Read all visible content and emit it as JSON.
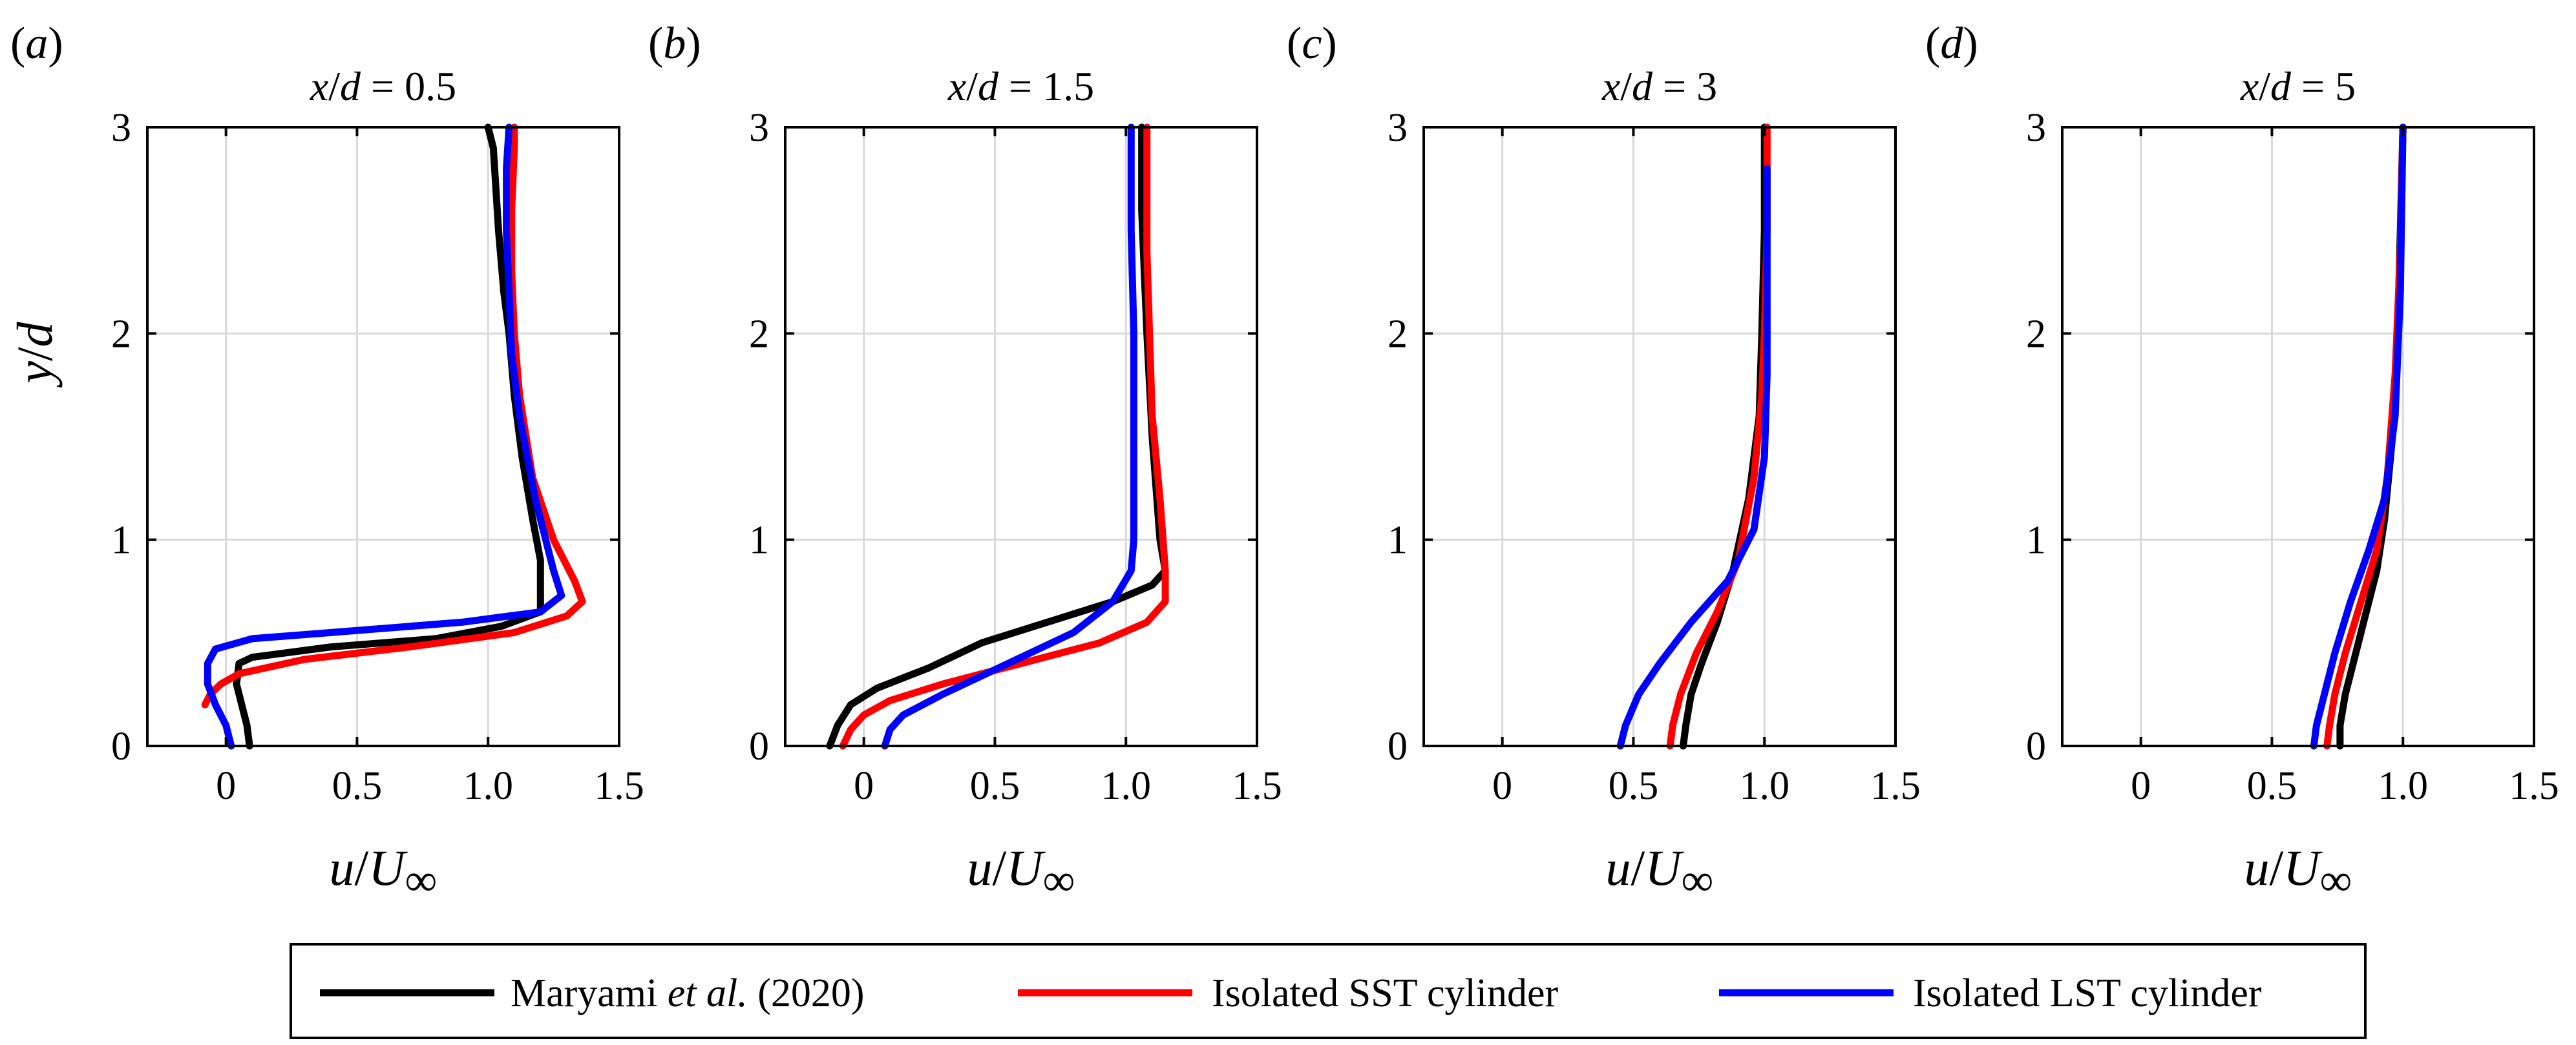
{
  "colors": {
    "maryami": "#000000",
    "sst": "#ff0000",
    "lst": "#0000ff",
    "grid": "#d9d9d9",
    "frame": "#000000"
  },
  "legend": [
    {
      "key": "maryami",
      "label_pre": "Maryami ",
      "label_ital": "et al.",
      "label_post": " (2020)"
    },
    {
      "key": "sst",
      "label_pre": "Isolated SST cylinder",
      "label_ital": "",
      "label_post": ""
    },
    {
      "key": "lst",
      "label_pre": "Isolated LST cylinder",
      "label_ital": "",
      "label_post": ""
    }
  ],
  "chart_data": [
    {
      "type": "line",
      "panel_label": "(a)",
      "title": "x/d = 0.5",
      "xlabel": "u/U∞",
      "ylabel": "y/d",
      "xlim": [
        -0.3,
        1.5
      ],
      "ylim": [
        0,
        3
      ],
      "xticks": [
        0,
        0.5,
        1.0,
        1.5
      ],
      "xtick_labels": [
        "0",
        "0.5",
        "1.0",
        "1.5"
      ],
      "yticks": [
        0,
        1,
        2,
        3
      ],
      "ytick_labels": [
        "0",
        "1",
        "2",
        "3"
      ],
      "grid": true,
      "series": [
        {
          "name": "Maryami et al. (2020)",
          "key": "maryami",
          "x": [
            0.09,
            0.08,
            0.06,
            0.04,
            0.05,
            0.1,
            0.4,
            0.8,
            1.05,
            1.2,
            1.2,
            1.17,
            1.13,
            1.1,
            1.08,
            1.06,
            1.04,
            1.03,
            1.02,
            1.0
          ],
          "y": [
            0.0,
            0.1,
            0.2,
            0.3,
            0.4,
            0.43,
            0.48,
            0.52,
            0.58,
            0.65,
            0.9,
            1.1,
            1.4,
            1.7,
            2.0,
            2.2,
            2.5,
            2.7,
            2.9,
            3.0
          ]
        },
        {
          "name": "Isolated SST cylinder",
          "key": "sst",
          "x": [
            -0.08,
            -0.06,
            -0.02,
            0.05,
            0.3,
            0.7,
            1.1,
            1.3,
            1.36,
            1.33,
            1.25,
            1.17,
            1.12,
            1.1,
            1.09,
            1.09,
            1.1,
            1.1
          ],
          "y": [
            0.2,
            0.25,
            0.3,
            0.35,
            0.42,
            0.48,
            0.55,
            0.63,
            0.7,
            0.8,
            1.0,
            1.3,
            1.7,
            2.0,
            2.3,
            2.6,
            2.9,
            3.0
          ]
        },
        {
          "name": "Isolated LST cylinder",
          "key": "lst",
          "x": [
            0.02,
            0.0,
            -0.04,
            -0.07,
            -0.07,
            -0.04,
            0.1,
            0.5,
            0.9,
            1.2,
            1.28,
            1.25,
            1.18,
            1.12,
            1.09,
            1.08,
            1.07,
            1.07,
            1.08
          ],
          "y": [
            0.0,
            0.1,
            0.2,
            0.3,
            0.4,
            0.47,
            0.52,
            0.56,
            0.6,
            0.65,
            0.73,
            0.85,
            1.2,
            1.6,
            1.9,
            2.2,
            2.5,
            2.8,
            3.0
          ]
        }
      ]
    },
    {
      "type": "line",
      "panel_label": "(b)",
      "title": "x/d = 1.5",
      "xlabel": "u/U∞",
      "ylabel": "",
      "xlim": [
        -0.3,
        1.5
      ],
      "ylim": [
        0,
        3
      ],
      "xticks": [
        0,
        0.5,
        1.0,
        1.5
      ],
      "xtick_labels": [
        "0",
        "0.5",
        "1.0",
        "1.5"
      ],
      "yticks": [
        0,
        1,
        2,
        3
      ],
      "ytick_labels": [
        "0",
        "1",
        "2",
        "3"
      ],
      "grid": true,
      "series": [
        {
          "name": "Maryami et al. (2020)",
          "key": "maryami",
          "x": [
            -0.13,
            -0.1,
            -0.05,
            0.05,
            0.25,
            0.45,
            0.7,
            0.95,
            1.1,
            1.15,
            1.13,
            1.1,
            1.08,
            1.07,
            1.06,
            1.06,
            1.06
          ],
          "y": [
            0.0,
            0.1,
            0.2,
            0.28,
            0.38,
            0.5,
            0.6,
            0.7,
            0.78,
            0.85,
            1.0,
            1.5,
            2.0,
            2.3,
            2.6,
            2.8,
            3.0
          ]
        },
        {
          "name": "Isolated SST cylinder",
          "key": "sst",
          "x": [
            -0.08,
            -0.05,
            0.0,
            0.1,
            0.3,
            0.6,
            0.9,
            1.08,
            1.15,
            1.15,
            1.13,
            1.1,
            1.09,
            1.08,
            1.08,
            1.08
          ],
          "y": [
            0.0,
            0.08,
            0.15,
            0.22,
            0.3,
            0.4,
            0.5,
            0.6,
            0.7,
            0.85,
            1.2,
            1.6,
            2.0,
            2.4,
            2.8,
            3.0
          ]
        },
        {
          "name": "Isolated LST cylinder",
          "key": "lst",
          "x": [
            0.08,
            0.1,
            0.15,
            0.3,
            0.55,
            0.8,
            0.95,
            1.02,
            1.03,
            1.03,
            1.03,
            1.02,
            1.02
          ],
          "y": [
            0.0,
            0.08,
            0.15,
            0.25,
            0.4,
            0.55,
            0.7,
            0.85,
            1.0,
            1.5,
            2.0,
            2.5,
            3.0
          ]
        }
      ]
    },
    {
      "type": "line",
      "panel_label": "(c)",
      "title": "x/d = 3",
      "xlabel": "u/U∞",
      "ylabel": "",
      "xlim": [
        -0.3,
        1.5
      ],
      "ylim": [
        0,
        3
      ],
      "xticks": [
        0,
        0.5,
        1.0,
        1.5
      ],
      "xtick_labels": [
        "0",
        "0.5",
        "1.0",
        "1.5"
      ],
      "yticks": [
        0,
        1,
        2,
        3
      ],
      "ytick_labels": [
        "0",
        "1",
        "2",
        "3"
      ],
      "grid": true,
      "series": [
        {
          "name": "Maryami et al. (2020)",
          "key": "maryami",
          "x": [
            0.69,
            0.7,
            0.72,
            0.76,
            0.82,
            0.88,
            0.94,
            0.98,
            0.99,
            1.0,
            1.0
          ],
          "y": [
            0.0,
            0.1,
            0.25,
            0.4,
            0.6,
            0.85,
            1.2,
            1.6,
            2.0,
            2.5,
            3.0
          ]
        },
        {
          "name": "Isolated SST cylinder",
          "key": "sst",
          "x": [
            0.64,
            0.65,
            0.68,
            0.74,
            0.82,
            0.9,
            0.96,
            0.99,
            1.0,
            1.01,
            1.01
          ],
          "y": [
            0.0,
            0.1,
            0.25,
            0.45,
            0.65,
            0.9,
            1.3,
            1.7,
            2.0,
            2.5,
            3.0
          ]
        },
        {
          "name": "Isolated LST cylinder",
          "key": "lst",
          "x": [
            0.45,
            0.47,
            0.52,
            0.6,
            0.72,
            0.86,
            0.96,
            1.0,
            1.01,
            1.01,
            1.01
          ],
          "y": [
            0.0,
            0.1,
            0.25,
            0.4,
            0.6,
            0.8,
            1.05,
            1.4,
            1.8,
            2.3,
            2.8
          ]
        }
      ]
    },
    {
      "type": "line",
      "panel_label": "(d)",
      "title": "x/d = 5",
      "xlabel": "u/U∞",
      "ylabel": "",
      "xlim": [
        -0.3,
        1.5
      ],
      "ylim": [
        0,
        3
      ],
      "xticks": [
        0,
        0.5,
        1.0,
        1.5
      ],
      "xtick_labels": [
        "0",
        "0.5",
        "1.0",
        "1.5"
      ],
      "yticks": [
        0,
        1,
        2,
        3
      ],
      "ytick_labels": [
        "0",
        "1",
        "2",
        "3"
      ],
      "grid": true,
      "series": [
        {
          "name": "Maryami et al. (2020)",
          "key": "maryami",
          "x": [
            0.76,
            0.76,
            0.78,
            0.82,
            0.86,
            0.9,
            0.93,
            0.96,
            0.98,
            0.99,
            1.0
          ],
          "y": [
            0.0,
            0.1,
            0.25,
            0.45,
            0.65,
            0.85,
            1.1,
            1.5,
            2.0,
            2.5,
            3.0
          ]
        },
        {
          "name": "Isolated SST cylinder",
          "key": "sst",
          "x": [
            0.71,
            0.72,
            0.74,
            0.78,
            0.84,
            0.9,
            0.94,
            0.97,
            0.99,
            1.0
          ],
          "y": [
            0.0,
            0.1,
            0.25,
            0.45,
            0.7,
            0.95,
            1.3,
            1.8,
            2.4,
            3.0
          ]
        },
        {
          "name": "Isolated LST cylinder",
          "key": "lst",
          "x": [
            0.66,
            0.67,
            0.7,
            0.74,
            0.8,
            0.87,
            0.93,
            0.97,
            0.99,
            1.0
          ],
          "y": [
            0.0,
            0.1,
            0.25,
            0.45,
            0.7,
            0.95,
            1.2,
            1.6,
            2.2,
            3.0
          ]
        }
      ]
    }
  ]
}
